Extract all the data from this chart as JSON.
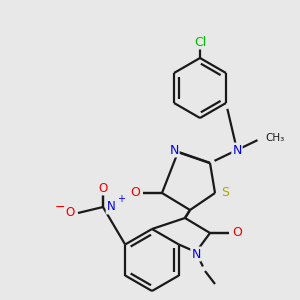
{
  "bg_color": "#e8e8e8",
  "bond_color": "#1a1a1a",
  "line_width": 1.6,
  "dbo": 0.012,
  "atom_colors": {
    "N": "#0000ee",
    "O": "#ee0000",
    "S": "#aaaa00",
    "Cl": "#00bb00",
    "C": "#1a1a1a"
  },
  "font_size": 8.5
}
